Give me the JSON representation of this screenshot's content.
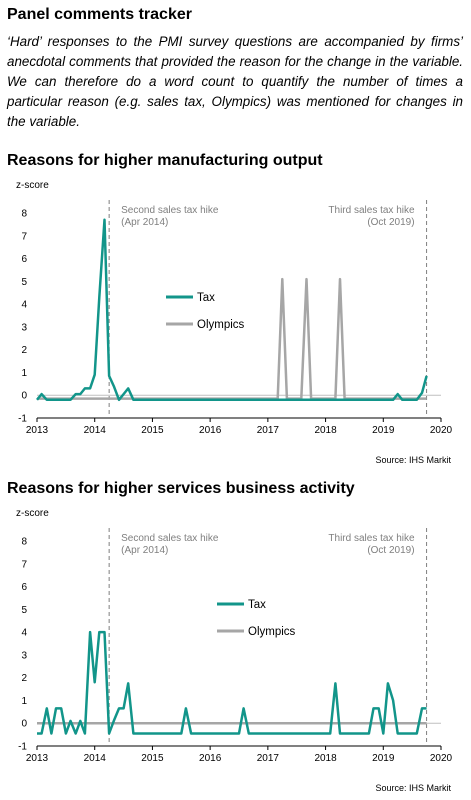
{
  "page": {
    "title": "Panel comments tracker",
    "intro": "‘Hard’ responses to the PMI survey questions are accompanied by firms’ anecdotal comments that provided the reason for the change in the variable. We can therefore do a word count to quantify the number of times a particular reason (e.g. sales tax, Olympics) was mentioned for changes in the variable."
  },
  "colors": {
    "tax": "#12958a",
    "olympics": "#a6a6a6",
    "annotation": "#7f7f7f"
  },
  "chart_data": [
    {
      "type": "line",
      "title": "Reasons for higher manufacturing output",
      "ylabel": "z-score",
      "ylim": [
        -1,
        8
      ],
      "yticks": [
        -1,
        0,
        1,
        2,
        3,
        4,
        5,
        6,
        7,
        8
      ],
      "xlim": [
        2013,
        2020
      ],
      "xticks": [
        "2013",
        "2014",
        "2015",
        "2016",
        "2017",
        "2018",
        "2019",
        "2020"
      ],
      "annotations": [
        {
          "x": 2014.25,
          "lines": [
            "Second sales tax hike",
            "(Apr 2014)"
          ],
          "align": "left"
        },
        {
          "x": 2019.75,
          "lines": [
            "Third sales tax hike",
            "(Oct 2019)"
          ],
          "align": "right"
        }
      ],
      "source": "Source: IHS Markit",
      "series": [
        {
          "name": "Tax",
          "points": [
            [
              2013.0,
              -0.2
            ],
            [
              2013.08,
              0.05
            ],
            [
              2013.17,
              -0.2
            ],
            [
              2013.58,
              -0.2
            ],
            [
              2013.67,
              0.05
            ],
            [
              2013.75,
              0.05
            ],
            [
              2013.83,
              0.3
            ],
            [
              2013.92,
              0.3
            ],
            [
              2014.0,
              0.9
            ],
            [
              2014.08,
              4.3
            ],
            [
              2014.17,
              7.7
            ],
            [
              2014.25,
              0.85
            ],
            [
              2014.33,
              0.4
            ],
            [
              2014.42,
              -0.2
            ],
            [
              2014.5,
              0.05
            ],
            [
              2014.58,
              0.3
            ],
            [
              2014.67,
              -0.2
            ],
            [
              2019.17,
              -0.2
            ],
            [
              2019.25,
              0.05
            ],
            [
              2019.33,
              -0.2
            ],
            [
              2019.58,
              -0.2
            ],
            [
              2019.67,
              0.1
            ],
            [
              2019.75,
              0.85
            ]
          ]
        },
        {
          "name": "Olympics",
          "points": [
            [
              2013.0,
              -0.15
            ],
            [
              2017.17,
              -0.15
            ],
            [
              2017.25,
              5.1
            ],
            [
              2017.33,
              -0.15
            ],
            [
              2017.58,
              -0.15
            ],
            [
              2017.67,
              5.1
            ],
            [
              2017.75,
              -0.15
            ],
            [
              2018.17,
              -0.15
            ],
            [
              2018.25,
              5.1
            ],
            [
              2018.33,
              -0.15
            ],
            [
              2019.75,
              -0.15
            ]
          ]
        }
      ]
    },
    {
      "type": "line",
      "title": "Reasons for higher services business activity",
      "ylabel": "z-score",
      "ylim": [
        -1,
        8
      ],
      "yticks": [
        -1,
        0,
        1,
        2,
        3,
        4,
        5,
        6,
        7,
        8
      ],
      "xlim": [
        2013,
        2020
      ],
      "xticks": [
        "2013",
        "2014",
        "2015",
        "2016",
        "2017",
        "2018",
        "2019",
        "2020"
      ],
      "annotations": [
        {
          "x": 2014.25,
          "lines": [
            "Second sales tax hike",
            "(Apr 2014)"
          ],
          "align": "left"
        },
        {
          "x": 2019.75,
          "lines": [
            "Third sales tax hike",
            "(Oct 2019)"
          ],
          "align": "right"
        }
      ],
      "source": "Source: IHS Markit",
      "series": [
        {
          "name": "Tax",
          "points": [
            [
              2013.0,
              -0.45
            ],
            [
              2013.08,
              -0.45
            ],
            [
              2013.17,
              0.65
            ],
            [
              2013.25,
              -0.45
            ],
            [
              2013.33,
              0.65
            ],
            [
              2013.42,
              0.65
            ],
            [
              2013.5,
              -0.45
            ],
            [
              2013.58,
              0.1
            ],
            [
              2013.67,
              -0.45
            ],
            [
              2013.75,
              0.1
            ],
            [
              2013.83,
              -0.45
            ],
            [
              2013.92,
              4.0
            ],
            [
              2014.0,
              1.8
            ],
            [
              2014.08,
              4.0
            ],
            [
              2014.17,
              4.0
            ],
            [
              2014.25,
              -0.45
            ],
            [
              2014.33,
              0.1
            ],
            [
              2014.42,
              0.65
            ],
            [
              2014.5,
              0.65
            ],
            [
              2014.58,
              1.75
            ],
            [
              2014.67,
              -0.45
            ],
            [
              2015.5,
              -0.45
            ],
            [
              2015.58,
              0.65
            ],
            [
              2015.67,
              -0.45
            ],
            [
              2016.5,
              -0.45
            ],
            [
              2016.58,
              0.65
            ],
            [
              2016.67,
              -0.45
            ],
            [
              2018.08,
              -0.45
            ],
            [
              2018.17,
              1.75
            ],
            [
              2018.25,
              -0.45
            ],
            [
              2018.75,
              -0.45
            ],
            [
              2018.83,
              0.65
            ],
            [
              2018.92,
              0.65
            ],
            [
              2019.0,
              -0.45
            ],
            [
              2019.08,
              1.75
            ],
            [
              2019.17,
              1.0
            ],
            [
              2019.25,
              -0.45
            ],
            [
              2019.58,
              -0.45
            ],
            [
              2019.67,
              0.65
            ],
            [
              2019.75,
              0.65
            ]
          ]
        },
        {
          "name": "Olympics",
          "points": [
            [
              2013.0,
              0.0
            ],
            [
              2019.75,
              0.0
            ]
          ]
        }
      ]
    }
  ]
}
